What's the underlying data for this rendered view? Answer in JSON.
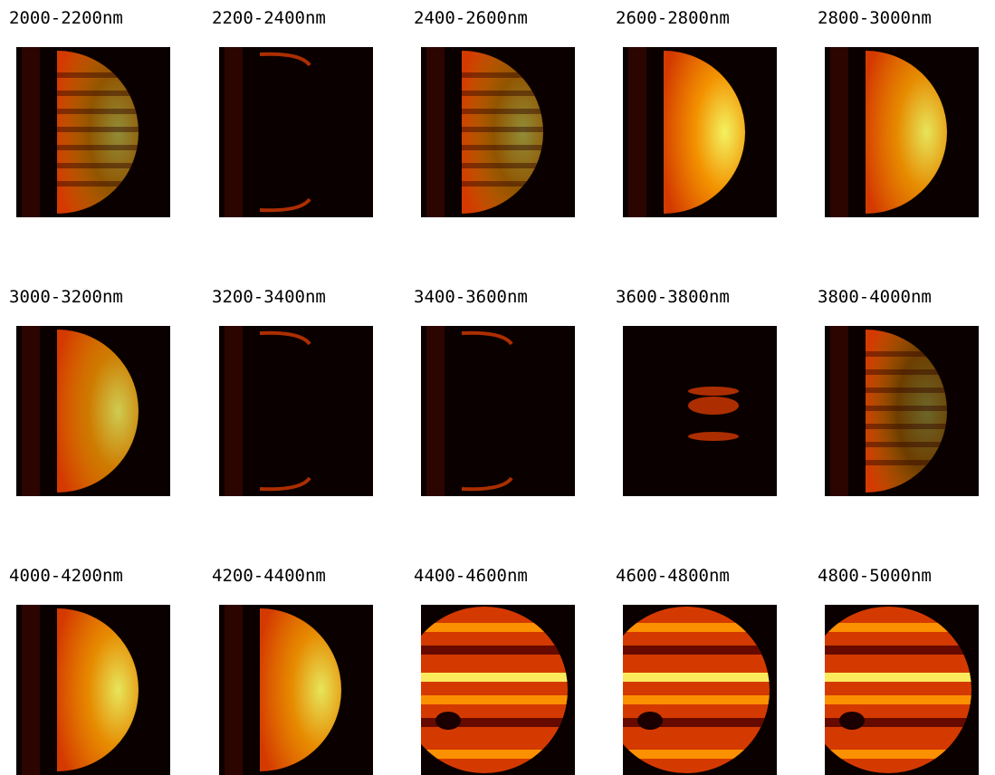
{
  "panels": [
    {
      "label": "2000-2200nm",
      "kind": "crescent",
      "intensity": 0.55,
      "bands": true
    },
    {
      "label": "2200-2400nm",
      "kind": "limb",
      "intensity": 0.25,
      "bands": false
    },
    {
      "label": "2400-2600nm",
      "kind": "crescent",
      "intensity": 0.55,
      "bands": true
    },
    {
      "label": "2600-2800nm",
      "kind": "half",
      "intensity": 0.95,
      "bands": false
    },
    {
      "label": "2800-3000nm",
      "kind": "half",
      "intensity": 0.9,
      "bands": false
    },
    {
      "label": "3000-3200nm",
      "kind": "half",
      "intensity": 0.8,
      "bands": false
    },
    {
      "label": "3200-3400nm",
      "kind": "limb",
      "intensity": 0.2,
      "bands": false
    },
    {
      "label": "3400-3600nm",
      "kind": "limb",
      "intensity": 0.2,
      "bands": false
    },
    {
      "label": "3600-3800nm",
      "kind": "spot",
      "intensity": 0.3,
      "bands": false
    },
    {
      "label": "3800-4000nm",
      "kind": "crescent",
      "intensity": 0.4,
      "bands": true
    },
    {
      "label": "4000-4200nm",
      "kind": "half",
      "intensity": 0.9,
      "bands": false
    },
    {
      "label": "4200-4400nm",
      "kind": "half",
      "intensity": 0.9,
      "bands": false
    },
    {
      "label": "4400-4600nm",
      "kind": "disk",
      "intensity": 0.8,
      "bands": true
    },
    {
      "label": "4600-4800nm",
      "kind": "disk",
      "intensity": 0.8,
      "bands": true
    },
    {
      "label": "4800-5000nm",
      "kind": "disk",
      "intensity": 0.8,
      "bands": true
    }
  ],
  "colors": {
    "background": "#0b0000",
    "dim": "#6e0a00",
    "mid": "#d43a00",
    "bright": "#ff9a00",
    "hot": "#ffff66"
  }
}
